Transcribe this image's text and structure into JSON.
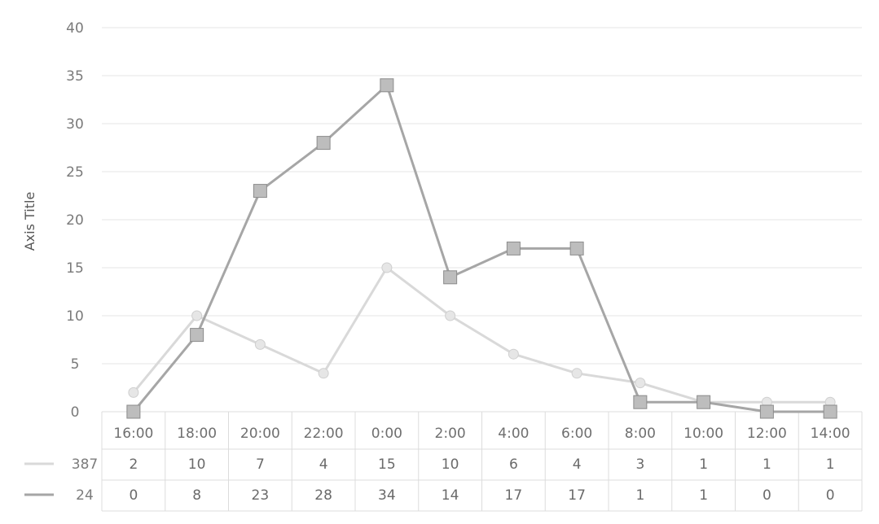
{
  "chart_data": {
    "type": "line",
    "ylabel": "Axis Title",
    "xlabel": "",
    "ylim": [
      0,
      40
    ],
    "yticks": [
      "0",
      "5",
      "10",
      "15",
      "20",
      "25",
      "30",
      "35",
      "40"
    ],
    "categories": [
      "16:00",
      "18:00",
      "20:00",
      "22:00",
      "0:00",
      "2:00",
      "4:00",
      "6:00",
      "8:00",
      "10:00",
      "12:00",
      "14:00"
    ],
    "series": [
      {
        "name": "387",
        "values": [
          2,
          10,
          7,
          4,
          15,
          10,
          6,
          4,
          3,
          1,
          1,
          1
        ],
        "color": "#d9d9d9",
        "marker": "circle"
      },
      {
        "name": "24",
        "values": [
          0,
          8,
          23,
          28,
          34,
          14,
          17,
          17,
          1,
          1,
          0,
          0
        ],
        "color": "#a6a6a6",
        "marker": "square"
      }
    ],
    "grid": true,
    "legend": "data-table"
  }
}
